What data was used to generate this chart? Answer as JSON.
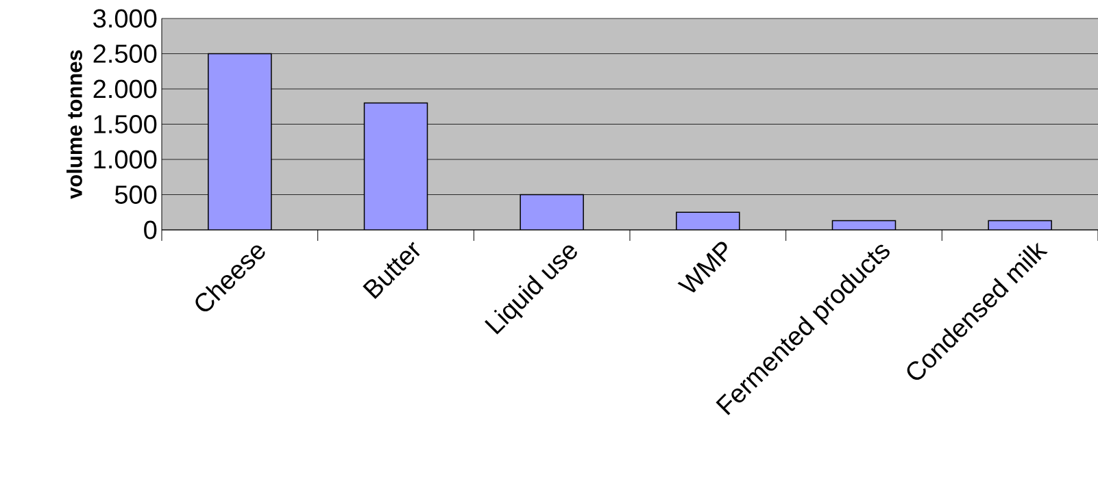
{
  "chart_data": {
    "type": "bar",
    "ylabel": "volume tonnes",
    "categories": [
      "Cheese",
      "Butter",
      "Liquid use",
      "WMP",
      "Fermented products",
      "Condensed milk"
    ],
    "values": [
      2500,
      1800,
      500,
      250,
      130,
      130
    ],
    "color": "#9999ff",
    "ylim": [
      0,
      3000
    ],
    "yticks": [
      {
        "value": 0,
        "label": "0"
      },
      {
        "value": 500,
        "label": "500"
      },
      {
        "value": 1000,
        "label": "1.000"
      },
      {
        "value": 1500,
        "label": "1.500"
      },
      {
        "value": 2000,
        "label": "2.000"
      },
      {
        "value": 2500,
        "label": "2.500"
      },
      {
        "value": 3000,
        "label": "3.000"
      }
    ],
    "grid": "y"
  }
}
